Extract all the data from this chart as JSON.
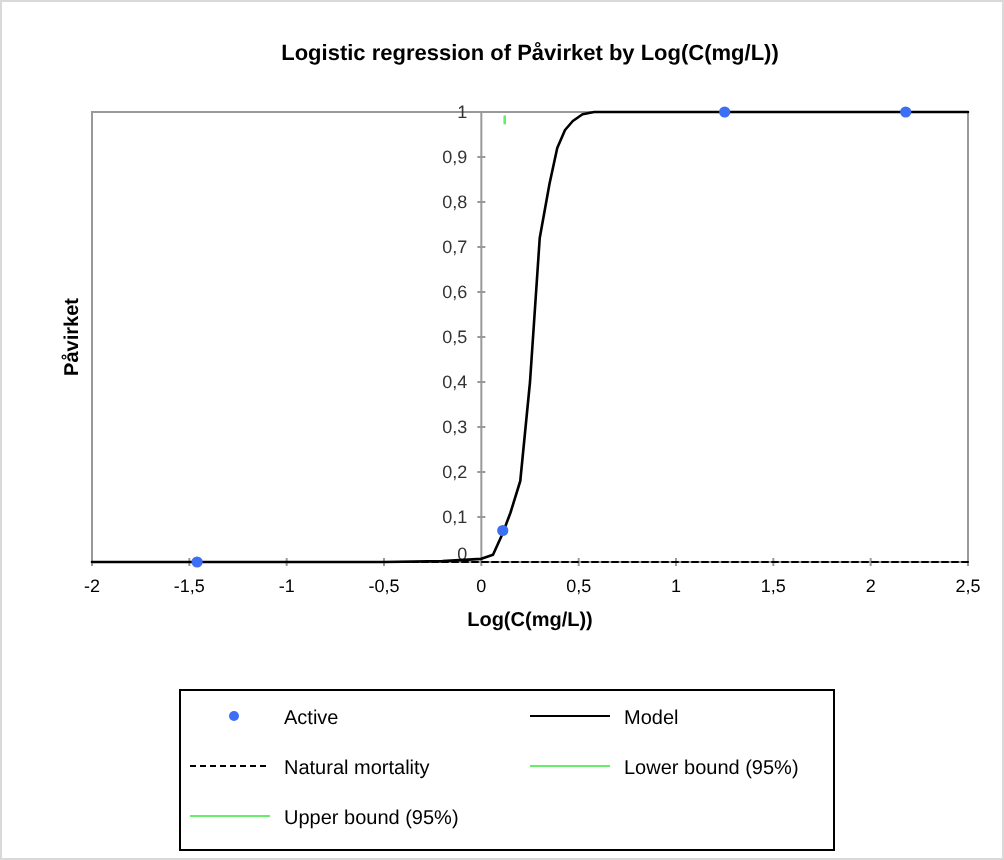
{
  "chart_data": {
    "type": "line",
    "title": "Logistic regression of Påvirket by Log(C(mg/L))",
    "xlabel": "Log(C(mg/L))",
    "ylabel": "Påvirket",
    "xlim": [
      -2,
      2.5
    ],
    "xticks": [
      {
        "value": -2,
        "label": "-2"
      },
      {
        "value": -1.5,
        "label": "-1,5"
      },
      {
        "value": -1,
        "label": "-1"
      },
      {
        "value": -0.5,
        "label": "-0,5"
      },
      {
        "value": 0,
        "label": "0"
      },
      {
        "value": 0.5,
        "label": "0,5"
      },
      {
        "value": 1,
        "label": "1"
      },
      {
        "value": 1.5,
        "label": "1,5"
      },
      {
        "value": 2,
        "label": "2"
      },
      {
        "value": 2.5,
        "label": "2,5"
      }
    ],
    "ylim": [
      0,
      1
    ],
    "yticks": [
      {
        "value": 0,
        "label": "0"
      },
      {
        "value": 0.1,
        "label": "0,1"
      },
      {
        "value": 0.2,
        "label": "0,2"
      },
      {
        "value": 0.3,
        "label": "0,3"
      },
      {
        "value": 0.4,
        "label": "0,4"
      },
      {
        "value": 0.5,
        "label": "0,5"
      },
      {
        "value": 0.6,
        "label": "0,6"
      },
      {
        "value": 0.7,
        "label": "0,7"
      },
      {
        "value": 0.8,
        "label": "0,8"
      },
      {
        "value": 0.9,
        "label": "0,9"
      },
      {
        "value": 1,
        "label": "1"
      }
    ],
    "grid": false,
    "legend": "bottom",
    "series": [
      {
        "name": "Active",
        "type": "scatter",
        "marker": "circle",
        "color": "#3d6ff5",
        "x": [
          -1.46,
          0.11,
          1.25,
          2.18
        ],
        "values": [
          0,
          0.07,
          1,
          1
        ]
      },
      {
        "name": "Model",
        "line_style": "solid",
        "color": "#000000",
        "x": [
          -2,
          -0.5,
          -0.2,
          0,
          0.06,
          0.11,
          0.15,
          0.2,
          0.25,
          0.3,
          0.35,
          0.39,
          0.43,
          0.47,
          0.52,
          0.58,
          1,
          2.5
        ],
        "values": [
          0,
          0,
          0.002,
          0.007,
          0.016,
          0.064,
          0.11,
          0.18,
          0.4,
          0.72,
          0.84,
          0.92,
          0.96,
          0.98,
          0.995,
          1,
          1,
          1
        ]
      },
      {
        "name": "Natural mortality",
        "line_style": "dashed",
        "color": "#000000",
        "x": [
          -2,
          2.5
        ],
        "values": [
          0,
          0
        ]
      },
      {
        "name": "Lower bound (95%)",
        "line_style": "solid",
        "color": "#66ee66",
        "x": [
          0.12,
          0.12
        ],
        "values": [
          0.975,
          0.99
        ]
      },
      {
        "name": "Upper bound (95%)",
        "line_style": "solid",
        "color": "#66ee66"
      }
    ]
  }
}
